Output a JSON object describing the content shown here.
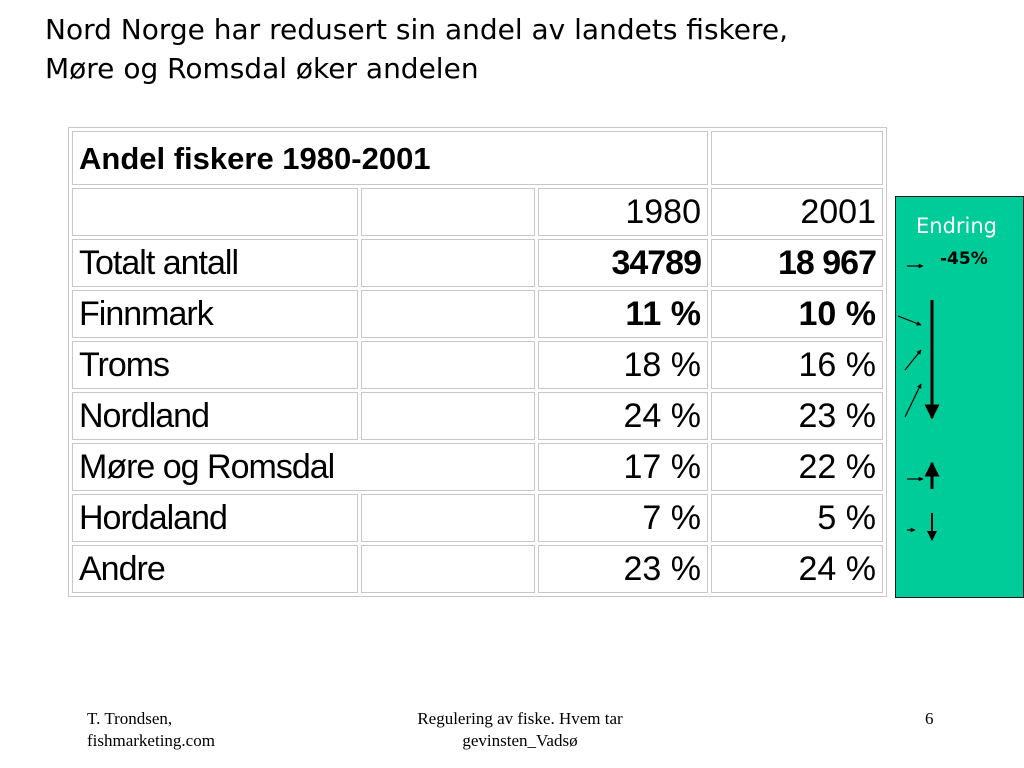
{
  "title": {
    "line1": "Nord Norge har redusert sin andel av landets fiskere,",
    "line2": "Møre og Romsdal øker andelen"
  },
  "table": {
    "heading": "Andel fiskere 1980-2001",
    "years": [
      "1980",
      "2001"
    ],
    "rows": [
      {
        "label": "Totalt antall",
        "v1980": "34789",
        "v2001": "18 967"
      },
      {
        "label": "Finnmark",
        "v1980": "11 %",
        "v2001": "10 %"
      },
      {
        "label": "Troms",
        "v1980": "18 %",
        "v2001": "16 %"
      },
      {
        "label": "Nordland",
        "v1980": "24 %",
        "v2001": "23 %"
      },
      {
        "label": "Møre og Romsdal",
        "v1980": "17 %",
        "v2001": "22 %"
      },
      {
        "label": "Hordaland",
        "v1980": "7 %",
        "v2001": "5 %"
      },
      {
        "label": "Andre",
        "v1980": "23 %",
        "v2001": "24 %"
      }
    ]
  },
  "change": {
    "label": "Endring",
    "total": "-45%",
    "color": "#00cc99"
  },
  "footer": {
    "left_line1": "T. Trondsen,",
    "left_line2": "fishmarketing.com",
    "center_line1": "Regulering av fiske. Hvem tar",
    "center_line2": "gevinsten_Vadsø",
    "page": "6"
  }
}
